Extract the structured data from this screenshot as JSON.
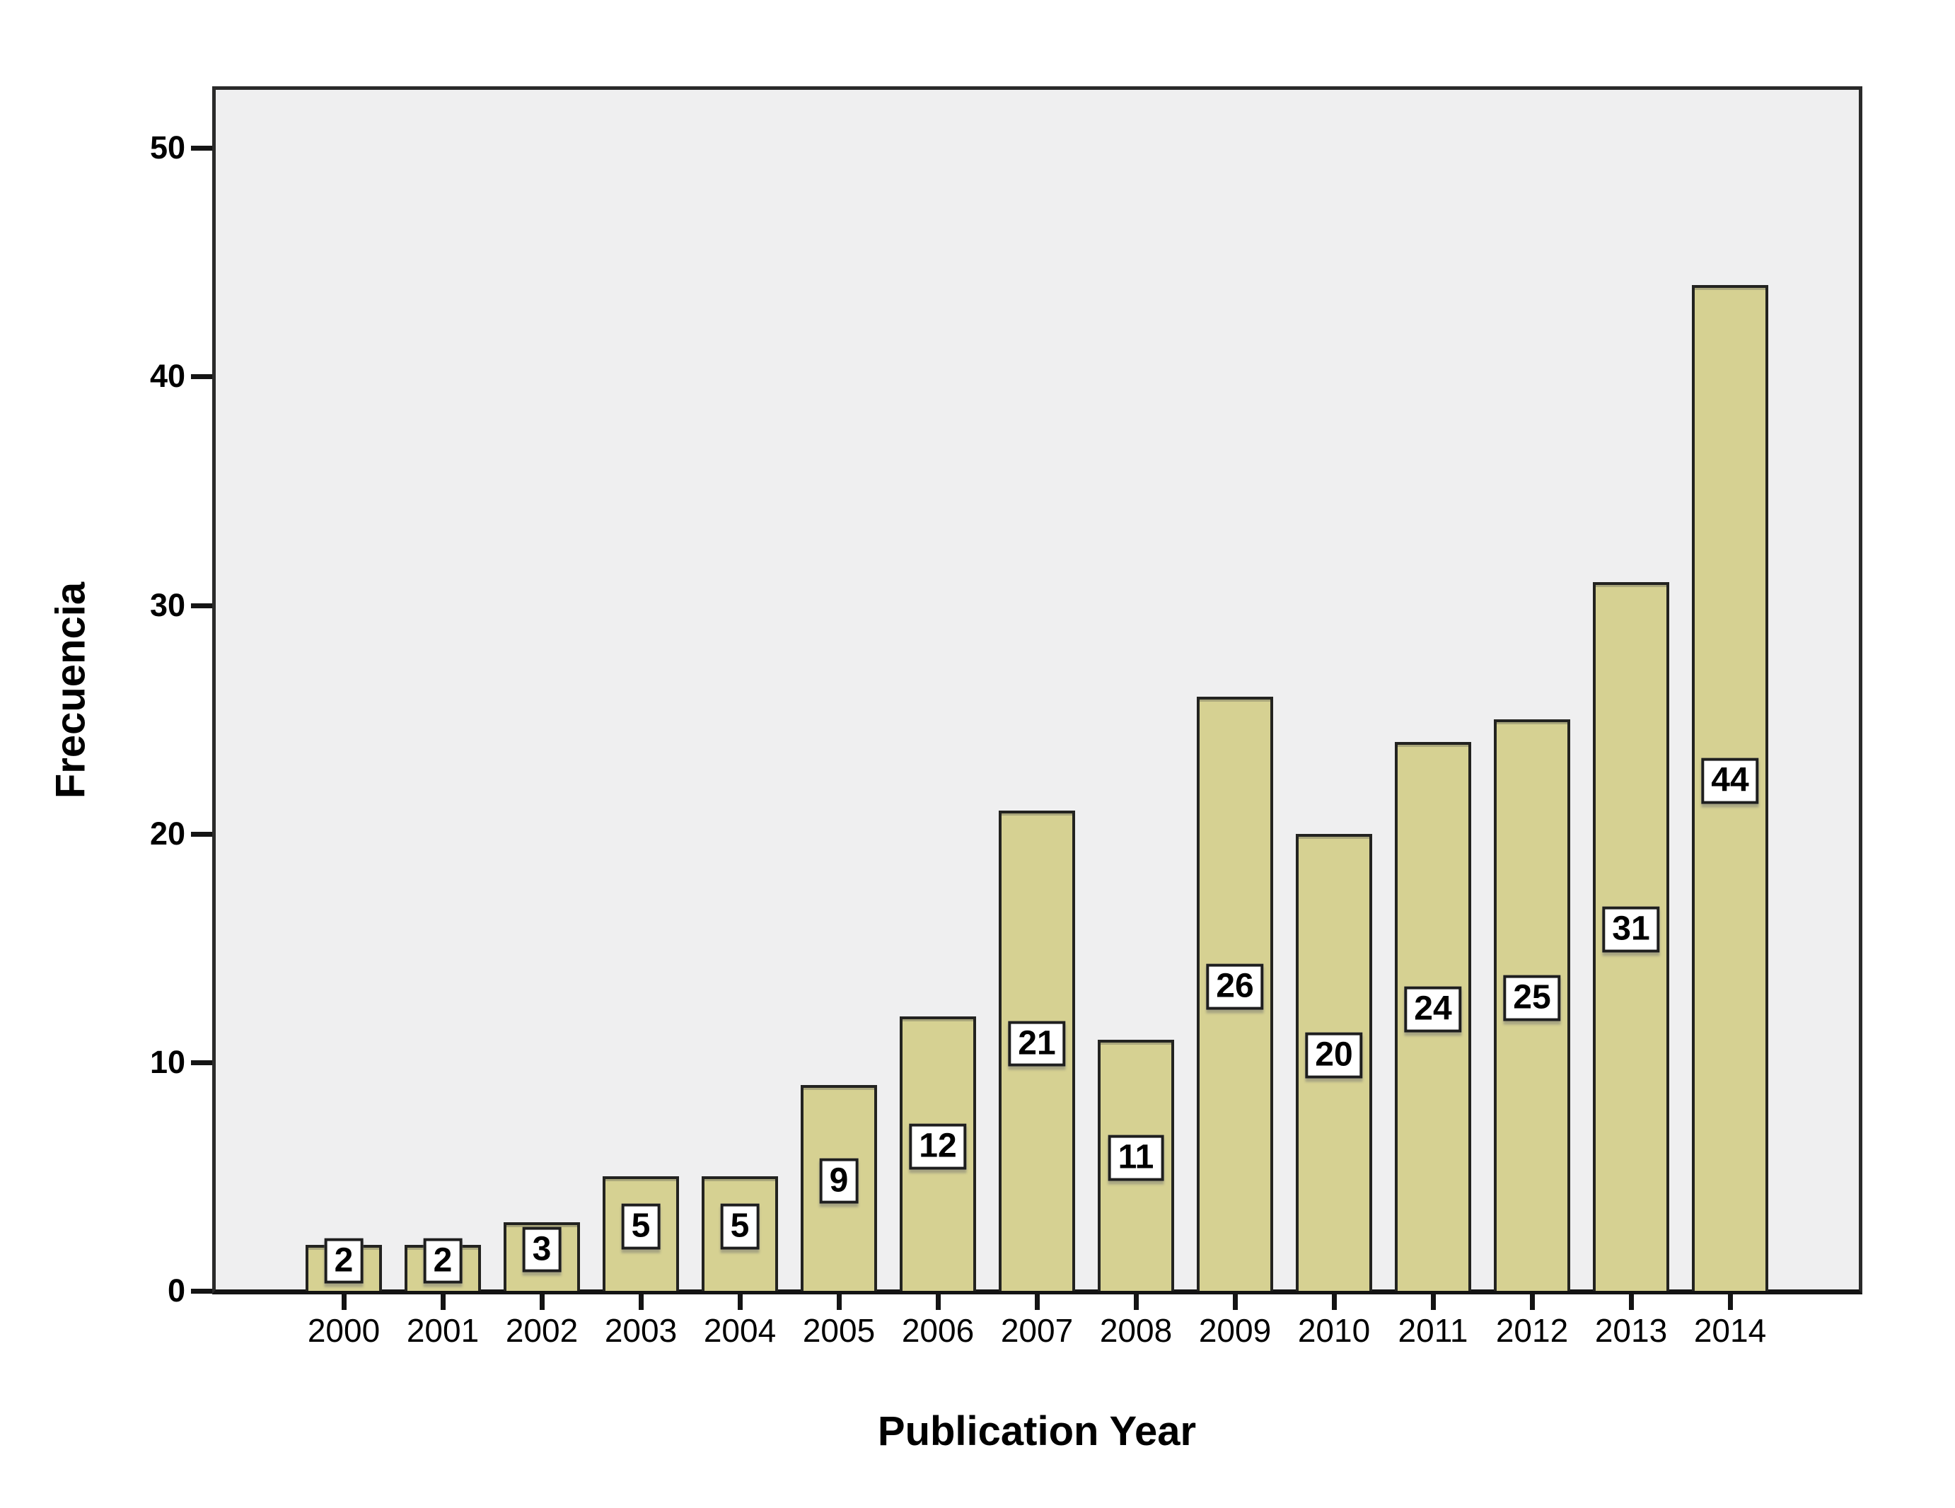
{
  "chart_data": {
    "type": "bar",
    "title": "",
    "xlabel": "Publication Year",
    "ylabel": "Frecuencia",
    "categories": [
      "2000",
      "2001",
      "2002",
      "2003",
      "2004",
      "2005",
      "2006",
      "2007",
      "2008",
      "2009",
      "2010",
      "2011",
      "2012",
      "2013",
      "2014"
    ],
    "values": [
      2,
      2,
      3,
      5,
      5,
      9,
      12,
      21,
      11,
      26,
      20,
      24,
      25,
      31,
      44
    ],
    "bar_value_labels": [
      "2",
      "2",
      "3",
      "5",
      "5",
      "9",
      "12",
      "21",
      "11",
      "26",
      "20",
      "24",
      "25",
      "31",
      "44"
    ],
    "y_ticks": [
      0,
      10,
      20,
      30,
      40,
      50
    ],
    "ylim": [
      0,
      52.7
    ],
    "grid": "off",
    "legend": "none",
    "bar_labels_shown": true
  },
  "colors": {
    "bar_fill": "#d6d192",
    "bar_border": "#232320",
    "plot_background": "#efeff0",
    "page_background": "#ffffff",
    "axis_color": "#141414",
    "label_box_background": "#ffffff",
    "label_box_border": "#1e1e1e",
    "text_color": "#000000"
  }
}
